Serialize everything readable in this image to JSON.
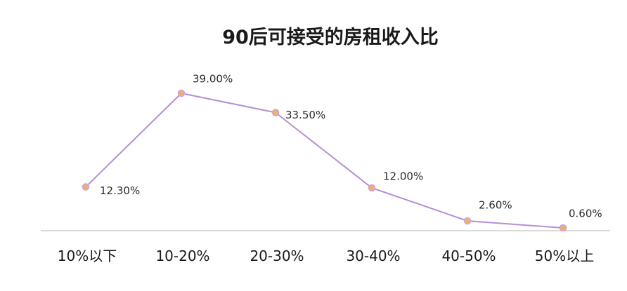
{
  "chart_data": {
    "type": "line",
    "title": "90后可接受的房租收入比",
    "xlabel": "",
    "ylabel": "",
    "categories": [
      "10%以下",
      "10-20%",
      "20-30%",
      "30-40%",
      "40-50%",
      "50%以上"
    ],
    "series": [
      {
        "values": [
          12.3,
          39.0,
          33.5,
          12.0,
          2.6,
          0.6
        ],
        "data_labels": [
          "12.30%",
          "39.00%",
          "33.50%",
          "12.00%",
          "2.60%",
          "0.60%"
        ]
      }
    ],
    "ylim": [
      0,
      40
    ],
    "grid": false,
    "legend": "none",
    "colors": {
      "line": "#b48fd6",
      "marker_fill": "#f0b06a",
      "marker_stroke": "#c9a3e2",
      "axis": "#d9d9d9"
    }
  }
}
